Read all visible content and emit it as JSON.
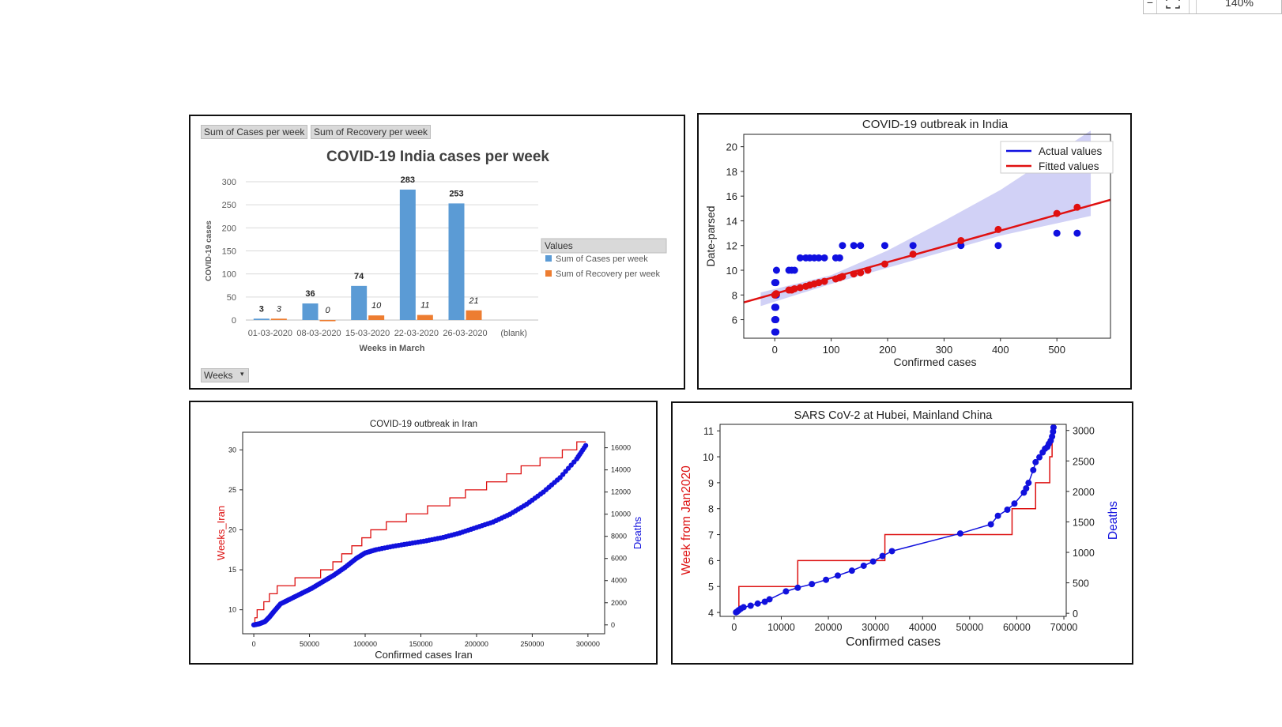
{
  "toolbar": {
    "zoom": "140%",
    "minus": "−",
    "fit_icon": "fit-screen-icon"
  },
  "chart_data": [
    {
      "type": "bar",
      "title": "COVID-19 India cases per week",
      "xlabel": "Weeks in March",
      "ylabel": "COVID-19 cases",
      "ylim": [
        0,
        300
      ],
      "yticks": [
        0,
        50,
        100,
        150,
        200,
        250,
        300
      ],
      "categories": [
        "01-03-2020",
        "08-03-2020",
        "15-03-2020",
        "22-03-2020",
        "26-03-2020",
        "(blank)"
      ],
      "series": [
        {
          "name": "Sum of Cases per week",
          "values": [
            3,
            36,
            74,
            283,
            253,
            null
          ],
          "color": "#5b9bd5"
        },
        {
          "name": "Sum of Recovery per week",
          "values": [
            3,
            0,
            10,
            11,
            21,
            null
          ],
          "color": "#ed7d31"
        }
      ],
      "legend_title": "Values",
      "legend_position": "right",
      "pivot_buttons": [
        "Sum of Cases per week",
        "Sum of Recovery per week"
      ],
      "filter_button": "Weeks",
      "grid": true
    },
    {
      "type": "scatter",
      "title": "COVID-19 outbreak in India",
      "xlabel": "Confirmed cases",
      "ylabel": "Date-parsed",
      "xlim": [
        -55,
        595
      ],
      "ylim": [
        4.5,
        21
      ],
      "xticks": [
        0,
        100,
        200,
        300,
        400,
        500
      ],
      "yticks": [
        6,
        8,
        10,
        12,
        14,
        16,
        18,
        20
      ],
      "legend": [
        {
          "name": "Actual values",
          "color": "#1010e0"
        },
        {
          "name": "Fitted values",
          "color": "#e01010"
        }
      ],
      "legend_position": "top-right",
      "actual": [
        [
          0,
          5
        ],
        [
          2,
          5
        ],
        [
          0,
          6
        ],
        [
          2,
          6
        ],
        [
          0,
          7
        ],
        [
          2,
          7
        ],
        [
          0,
          8
        ],
        [
          2,
          8
        ],
        [
          3,
          8
        ],
        [
          0,
          9
        ],
        [
          2,
          9
        ],
        [
          3,
          10
        ],
        [
          25,
          10
        ],
        [
          30,
          10
        ],
        [
          35,
          10
        ],
        [
          45,
          11
        ],
        [
          55,
          11
        ],
        [
          62,
          11
        ],
        [
          70,
          11
        ],
        [
          78,
          11
        ],
        [
          88,
          11
        ],
        [
          108,
          11
        ],
        [
          115,
          11
        ],
        [
          120,
          12
        ],
        [
          140,
          12
        ],
        [
          152,
          12
        ],
        [
          195,
          12
        ],
        [
          245,
          12
        ],
        [
          330,
          12
        ],
        [
          396,
          12
        ],
        [
          500,
          13
        ],
        [
          536,
          13
        ]
      ],
      "fitted": [
        [
          0,
          8
        ],
        [
          2,
          8.1
        ],
        [
          3,
          8.1
        ],
        [
          25,
          8.4
        ],
        [
          30,
          8.4
        ],
        [
          35,
          8.5
        ],
        [
          45,
          8.6
        ],
        [
          55,
          8.7
        ],
        [
          62,
          8.8
        ],
        [
          70,
          8.9
        ],
        [
          78,
          9.0
        ],
        [
          88,
          9.1
        ],
        [
          108,
          9.3
        ],
        [
          115,
          9.4
        ],
        [
          120,
          9.5
        ],
        [
          140,
          9.7
        ],
        [
          152,
          9.8
        ],
        [
          165,
          10.0
        ],
        [
          195,
          10.5
        ],
        [
          245,
          11.3
        ],
        [
          330,
          12.4
        ],
        [
          396,
          13.3
        ],
        [
          500,
          14.6
        ],
        [
          536,
          15.1
        ]
      ],
      "fit_line": [
        [
          -55,
          7.4
        ],
        [
          595,
          15.7
        ]
      ],
      "band": {
        "lower": [
          [
            -25,
            7.1
          ],
          [
            100,
            8.9
          ],
          [
            200,
            10.2
          ],
          [
            300,
            11.5
          ],
          [
            400,
            12.8
          ],
          [
            500,
            13.8
          ],
          [
            560,
            14.4
          ]
        ],
        "upper": [
          [
            -25,
            8.2
          ],
          [
            100,
            9.6
          ],
          [
            200,
            11.6
          ],
          [
            300,
            14.0
          ],
          [
            400,
            16.5
          ],
          [
            500,
            19.5
          ],
          [
            560,
            21.3
          ]
        ]
      },
      "grid": false
    },
    {
      "type": "line",
      "title": "COVID-19 outbreak in Iran",
      "xlabel": "Confirmed cases  Iran",
      "ylabel": "Weeks_Iran",
      "y2label": "Deaths",
      "xlim": [
        -10000,
        315000
      ],
      "ylim": [
        7,
        32.2
      ],
      "y2lim": [
        -800,
        17400
      ],
      "xticks": [
        0,
        50000,
        100000,
        150000,
        200000,
        250000,
        300000
      ],
      "yticks": [
        10,
        15,
        20,
        25,
        30
      ],
      "y2ticks": [
        0,
        2000,
        4000,
        6000,
        8000,
        10000,
        12000,
        14000,
        16000
      ],
      "weeks_series": {
        "name": "Weeks_Iran",
        "color": "#dd1111",
        "steps": [
          [
            0,
            8
          ],
          [
            1000,
            9
          ],
          [
            3000,
            10
          ],
          [
            9000,
            11
          ],
          [
            14000,
            12
          ],
          [
            21000,
            13
          ],
          [
            37000,
            14
          ],
          [
            60000,
            15
          ],
          [
            71000,
            16
          ],
          [
            79000,
            17
          ],
          [
            88000,
            18
          ],
          [
            97000,
            19
          ],
          [
            105000,
            20
          ],
          [
            119000,
            21
          ],
          [
            137000,
            22
          ],
          [
            156000,
            23
          ],
          [
            176000,
            24
          ],
          [
            190000,
            25
          ],
          [
            209000,
            26
          ],
          [
            227000,
            27
          ],
          [
            240000,
            28
          ],
          [
            257000,
            29
          ],
          [
            277000,
            30
          ],
          [
            290000,
            31
          ],
          [
            298000,
            31
          ]
        ]
      },
      "deaths_series": {
        "name": "Deaths",
        "color": "#1111dd",
        "points": [
          [
            0,
            0
          ],
          [
            5000,
            100
          ],
          [
            10000,
            300
          ],
          [
            14000,
            700
          ],
          [
            18000,
            1200
          ],
          [
            24000,
            1900
          ],
          [
            32000,
            2300
          ],
          [
            42000,
            2800
          ],
          [
            52000,
            3300
          ],
          [
            62000,
            3900
          ],
          [
            72000,
            4500
          ],
          [
            82000,
            5200
          ],
          [
            92000,
            6000
          ],
          [
            100000,
            6500
          ],
          [
            110000,
            6800
          ],
          [
            125000,
            7100
          ],
          [
            140000,
            7350
          ],
          [
            155000,
            7600
          ],
          [
            170000,
            7900
          ],
          [
            185000,
            8300
          ],
          [
            200000,
            8800
          ],
          [
            215000,
            9300
          ],
          [
            230000,
            10000
          ],
          [
            245000,
            10900
          ],
          [
            260000,
            12000
          ],
          [
            275000,
            13300
          ],
          [
            290000,
            15000
          ],
          [
            298000,
            16200
          ]
        ]
      },
      "grid": false
    },
    {
      "type": "line",
      "title": "SARS CoV-2 at Hubei, Mainland China",
      "xlabel": "Confirmed cases",
      "ylabel": "Week from Jan2020",
      "y2label": "Deaths",
      "xlim": [
        -3000,
        70500
      ],
      "ylim": [
        3.85,
        11.25
      ],
      "y2lim": [
        -50,
        3100
      ],
      "xticks": [
        0,
        10000,
        20000,
        30000,
        40000,
        50000,
        60000,
        70000
      ],
      "yticks": [
        4,
        5,
        6,
        7,
        8,
        9,
        10,
        11
      ],
      "y2ticks": [
        0,
        500,
        1000,
        1500,
        2000,
        2500,
        3000
      ],
      "week_series": {
        "name": "Week from Jan2020",
        "color": "#dd1111",
        "steps": [
          [
            400,
            4
          ],
          [
            1000,
            5
          ],
          [
            11000,
            5
          ],
          [
            13500,
            6
          ],
          [
            31000,
            6
          ],
          [
            32000,
            7
          ],
          [
            58000,
            7
          ],
          [
            59000,
            8
          ],
          [
            63500,
            8
          ],
          [
            64000,
            9
          ],
          [
            66500,
            9
          ],
          [
            67000,
            10
          ],
          [
            67500,
            11
          ],
          [
            67800,
            11
          ]
        ]
      },
      "deaths_series": {
        "name": "Deaths",
        "color": "#1111dd",
        "points": [
          [
            400,
            17
          ],
          [
            600,
            25
          ],
          [
            800,
            40
          ],
          [
            1000,
            52
          ],
          [
            1400,
            76
          ],
          [
            2000,
            100
          ],
          [
            3500,
            125
          ],
          [
            5000,
            160
          ],
          [
            6500,
            190
          ],
          [
            7500,
            230
          ],
          [
            11000,
            360
          ],
          [
            13500,
            420
          ],
          [
            16500,
            480
          ],
          [
            19500,
            550
          ],
          [
            22000,
            620
          ],
          [
            25000,
            700
          ],
          [
            27500,
            780
          ],
          [
            29500,
            850
          ],
          [
            31500,
            940
          ],
          [
            33500,
            1020
          ],
          [
            48000,
            1310
          ],
          [
            54500,
            1460
          ],
          [
            56000,
            1600
          ],
          [
            58000,
            1700
          ],
          [
            59500,
            1800
          ],
          [
            61500,
            1980
          ],
          [
            62000,
            2050
          ],
          [
            62500,
            2140
          ],
          [
            63500,
            2350
          ],
          [
            64000,
            2480
          ],
          [
            64800,
            2560
          ],
          [
            65500,
            2640
          ],
          [
            66000,
            2700
          ],
          [
            66500,
            2730
          ],
          [
            66800,
            2780
          ],
          [
            67200,
            2830
          ],
          [
            67500,
            2900
          ],
          [
            67700,
            2980
          ],
          [
            67800,
            3050
          ]
        ]
      },
      "grid": false
    }
  ]
}
